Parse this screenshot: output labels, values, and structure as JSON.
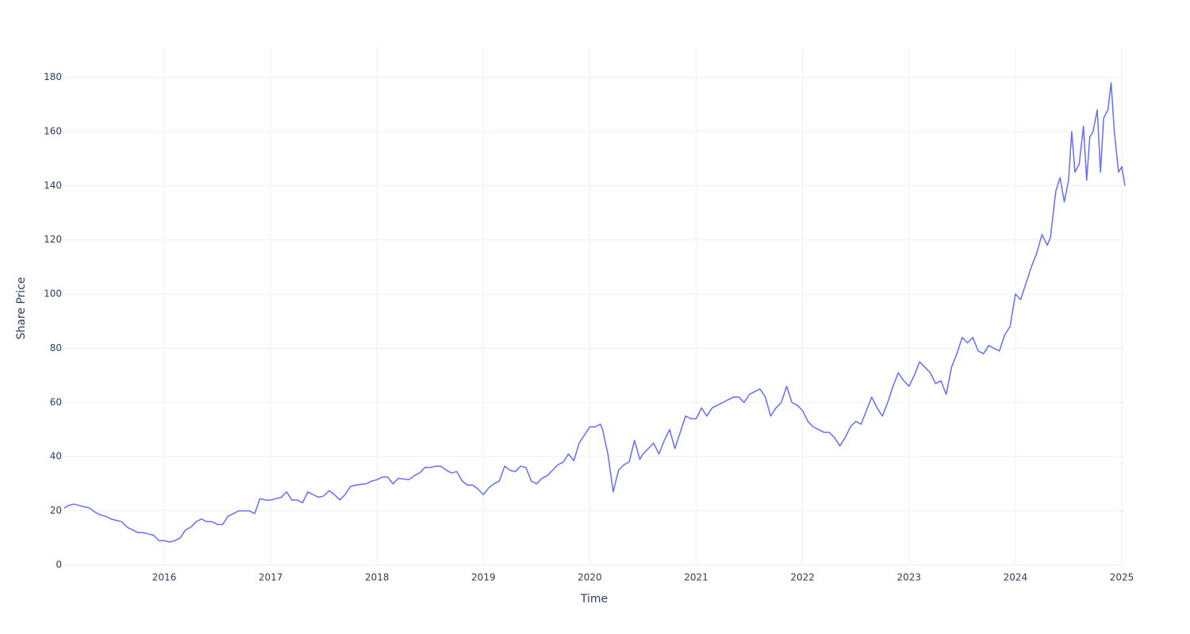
{
  "chart_data": {
    "type": "line",
    "x_label": "Time",
    "y_label": "Share Price",
    "color": "#636efa",
    "grid": true,
    "xlim": [
      2015.053,
      2025.03
    ],
    "ylim": [
      0,
      191
    ],
    "xticks": [
      2016,
      2017,
      2018,
      2019,
      2020,
      2021,
      2022,
      2023,
      2024,
      2025
    ],
    "yticks": [
      0,
      20,
      40,
      60,
      80,
      100,
      120,
      140,
      160,
      180
    ],
    "x": [
      2015.06,
      2015.1,
      2015.15,
      2015.2,
      2015.25,
      2015.3,
      2015.35,
      2015.4,
      2015.45,
      2015.5,
      2015.55,
      2015.6,
      2015.65,
      2015.7,
      2015.75,
      2015.8,
      2015.85,
      2015.9,
      2015.95,
      2016.0,
      2016.05,
      2016.1,
      2016.15,
      2016.2,
      2016.25,
      2016.3,
      2016.35,
      2016.4,
      2016.45,
      2016.5,
      2016.55,
      2016.6,
      2016.65,
      2016.7,
      2016.75,
      2016.8,
      2016.85,
      2016.9,
      2016.95,
      2017.0,
      2017.1,
      2017.15,
      2017.2,
      2017.25,
      2017.3,
      2017.35,
      2017.4,
      2017.45,
      2017.5,
      2017.55,
      2017.6,
      2017.65,
      2017.7,
      2017.75,
      2017.8,
      2017.9,
      2017.95,
      2018.0,
      2018.05,
      2018.1,
      2018.15,
      2018.2,
      2018.3,
      2018.35,
      2018.4,
      2018.45,
      2018.5,
      2018.55,
      2018.6,
      2018.65,
      2018.7,
      2018.75,
      2018.8,
      2018.85,
      2018.9,
      2018.95,
      2019.0,
      2019.05,
      2019.1,
      2019.15,
      2019.2,
      2019.25,
      2019.3,
      2019.35,
      2019.4,
      2019.45,
      2019.5,
      2019.55,
      2019.6,
      2019.65,
      2019.7,
      2019.75,
      2019.8,
      2019.85,
      2019.9,
      2019.95,
      2020.0,
      2020.05,
      2020.1,
      2020.12,
      2020.17,
      2020.22,
      2020.27,
      2020.32,
      2020.37,
      2020.42,
      2020.47,
      2020.5,
      2020.55,
      2020.6,
      2020.65,
      2020.7,
      2020.75,
      2020.8,
      2020.85,
      2020.9,
      2020.95,
      2021.0,
      2021.05,
      2021.1,
      2021.15,
      2021.2,
      2021.3,
      2021.35,
      2021.4,
      2021.45,
      2021.5,
      2021.55,
      2021.6,
      2021.65,
      2021.7,
      2021.75,
      2021.8,
      2021.85,
      2021.9,
      2021.95,
      2022.0,
      2022.05,
      2022.1,
      2022.15,
      2022.2,
      2022.25,
      2022.3,
      2022.35,
      2022.4,
      2022.45,
      2022.5,
      2022.55,
      2022.6,
      2022.65,
      2022.7,
      2022.75,
      2022.8,
      2022.85,
      2022.9,
      2022.95,
      2023.0,
      2023.05,
      2023.1,
      2023.15,
      2023.2,
      2023.25,
      2023.3,
      2023.35,
      2023.4,
      2023.45,
      2023.5,
      2023.55,
      2023.6,
      2023.65,
      2023.7,
      2023.75,
      2023.8,
      2023.85,
      2023.9,
      2023.95,
      2024.0,
      2024.05,
      2024.1,
      2024.15,
      2024.2,
      2024.25,
      2024.3,
      2024.33,
      2024.38,
      2024.42,
      2024.46,
      2024.5,
      2024.53,
      2024.56,
      2024.6,
      2024.64,
      2024.67,
      2024.7,
      2024.73,
      2024.77,
      2024.8,
      2024.83,
      2024.87,
      2024.9,
      2024.93,
      2024.97,
      2025.0,
      2025.03
    ],
    "values": [
      21,
      22,
      22.5,
      22,
      21.5,
      21,
      19.5,
      18.5,
      18,
      17,
      16.5,
      16,
      14,
      13,
      12,
      12,
      11.5,
      11,
      9,
      9,
      8.5,
      9,
      10,
      13,
      14,
      16,
      17,
      16,
      16,
      15,
      15,
      18,
      19,
      20,
      20,
      20,
      19,
      24.5,
      24,
      24,
      25,
      27,
      24,
      24,
      23,
      27,
      26,
      25,
      25.5,
      27.5,
      26,
      24,
      26,
      29,
      29.5,
      30,
      31,
      31.5,
      32.5,
      32.5,
      30,
      32,
      31.5,
      33,
      34,
      36,
      36,
      36.5,
      36.5,
      35,
      34,
      34.5,
      31,
      29.5,
      29.5,
      28,
      26,
      28.5,
      30,
      31,
      36.5,
      35,
      34.5,
      36.5,
      36,
      31,
      30,
      32,
      33,
      35,
      37,
      38,
      41,
      38.5,
      45,
      48,
      51,
      51,
      52,
      50,
      41,
      27,
      35,
      37,
      38,
      46,
      39,
      41,
      43,
      45,
      41,
      46,
      50,
      43,
      49,
      55,
      54,
      54,
      58,
      55,
      58,
      59,
      61,
      62,
      62,
      60,
      63,
      64,
      65,
      62,
      55,
      58,
      60,
      66,
      60,
      59,
      57,
      53,
      51,
      50,
      49,
      49,
      47,
      44,
      47,
      51,
      53,
      52,
      57,
      62,
      58,
      55,
      60,
      66,
      71,
      68,
      66,
      70,
      75,
      73,
      71,
      67,
      68,
      63,
      73,
      78,
      84,
      82,
      84,
      79,
      78,
      81,
      80,
      79,
      85,
      88,
      100,
      98,
      104,
      110,
      115,
      122,
      118,
      121,
      138,
      143,
      134,
      142,
      160,
      145,
      148,
      162,
      142,
      158,
      160,
      168,
      145,
      165,
      168,
      178,
      160,
      145,
      147,
      140
    ]
  }
}
